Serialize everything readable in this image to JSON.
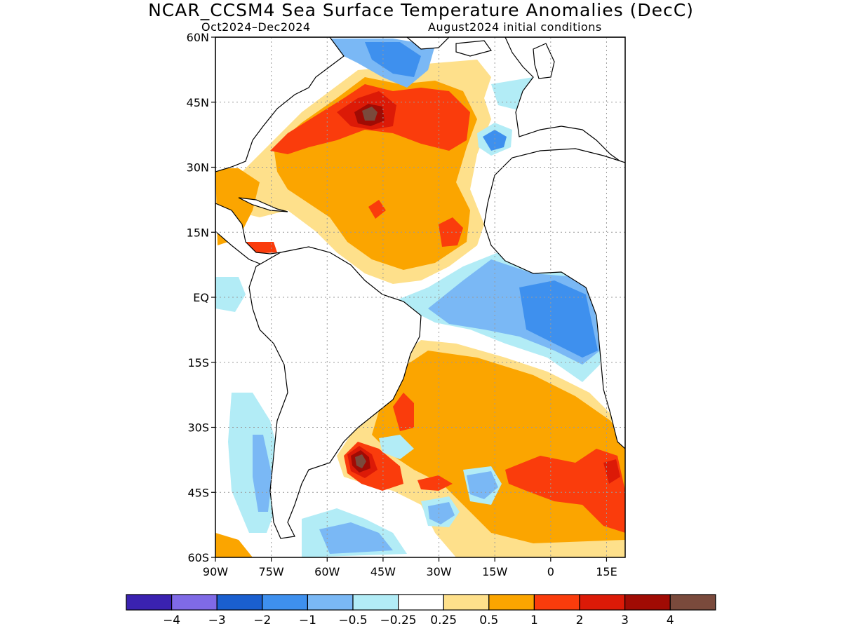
{
  "title": "NCAR_CCSM4 Sea Surface Temperature Anomalies (DecC)",
  "subtitle_left": "Oct2024–Dec2024",
  "subtitle_right": "August2024 initial conditions",
  "map": {
    "lon_range": [
      -90,
      20
    ],
    "lat_range": [
      -60,
      60
    ],
    "lat_labels": [
      "60N",
      "45N",
      "30N",
      "15N",
      "EQ",
      "15S",
      "30S",
      "45S",
      "60S"
    ],
    "lat_values": [
      60,
      45,
      30,
      15,
      0,
      -15,
      -30,
      -45,
      -60
    ],
    "lon_labels": [
      "90W",
      "75W",
      "60W",
      "45W",
      "30W",
      "15W",
      "0",
      "15E"
    ],
    "lon_values": [
      -90,
      -75,
      -60,
      -45,
      -30,
      -15,
      0,
      15
    ]
  },
  "colorbar": {
    "colors": [
      "#3a22b0",
      "#7f6ae6",
      "#1a5fcf",
      "#3e90ee",
      "#7ab8f5",
      "#b2ecf6",
      "#ffffff",
      "#fee08b",
      "#fba500",
      "#fa3c0c",
      "#dc1a07",
      "#a00b04",
      "#7a4a3c"
    ],
    "labels": [
      "-4",
      "-3",
      "-2",
      "-1",
      "-0.5",
      "-0.25",
      "0.25",
      "0.5",
      "1",
      "2",
      "3",
      "4"
    ]
  }
}
